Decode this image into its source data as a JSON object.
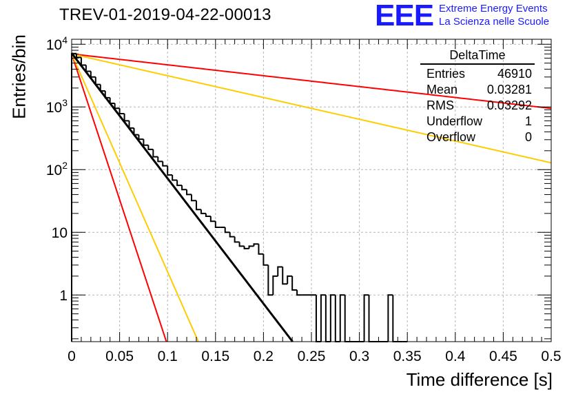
{
  "title": "TREV-01-2019-04-22-00013",
  "logo": {
    "mark": "EEE",
    "line1": "Extreme Energy Events",
    "line2": "La Scienza nelle Scuole",
    "color": "#1a1aff"
  },
  "stats_box": {
    "name": "DeltaTime",
    "rows": [
      {
        "label": "Entries",
        "value": "46910"
      },
      {
        "label": "Mean",
        "value": "0.03281"
      },
      {
        "label": "RMS",
        "value": "0.03292"
      },
      {
        "label": "Underflow",
        "value": "1"
      },
      {
        "label": "Overflow",
        "value": "0"
      }
    ]
  },
  "chart_data": {
    "type": "bar",
    "title": "TREV-01-2019-04-22-00013",
    "xlabel": "Time difference [s]",
    "ylabel": "Entries/bin",
    "xlim": [
      0,
      0.5
    ],
    "ylim": [
      0.18,
      12000
    ],
    "yscale": "log",
    "grid": true,
    "x_ticks": [
      "0",
      "0.05",
      "0.1",
      "0.15",
      "0.2",
      "0.25",
      "0.3",
      "0.35",
      "0.4",
      "0.45",
      "0.5"
    ],
    "y_ticks": [
      {
        "value": 1,
        "label": "1"
      },
      {
        "value": 10,
        "label": "10"
      },
      {
        "value": 100,
        "label": "10^2"
      },
      {
        "value": 1000,
        "label": "10^3"
      },
      {
        "value": 10000,
        "label": "10^4"
      }
    ],
    "histogram": {
      "bin_width": 0.005,
      "values": [
        7100,
        6150,
        4650,
        3700,
        3000,
        2280,
        1800,
        1400,
        1140,
        950,
        780,
        600,
        460,
        360,
        305,
        245,
        210,
        160,
        135,
        115,
        82,
        68,
        56,
        48,
        40,
        32,
        23,
        20,
        18,
        15,
        12,
        12,
        10,
        8.5,
        7,
        6,
        5.5,
        6,
        6.5,
        4.5,
        3,
        1,
        2,
        2.8,
        1.5,
        2,
        1.2,
        1,
        1,
        1,
        1,
        0,
        1,
        0,
        1,
        0,
        1,
        0,
        0,
        0,
        0,
        1,
        0,
        0,
        0,
        0,
        1,
        0,
        0,
        0
      ]
    },
    "fits": [
      {
        "color": "#000000",
        "y0": 7200,
        "slope_per_s": 46,
        "x_end": 0.35
      },
      {
        "color": "#ff0000",
        "y0": 7000,
        "slope_per_s": 4.0,
        "x_end": 0.5
      },
      {
        "color": "#ffcc00",
        "y0": 7000,
        "slope_per_s": 8.0,
        "x_end": 0.5
      },
      {
        "color": "#ff0000",
        "y0": 7000,
        "slope_per_s": 107,
        "x_end": 0.5
      },
      {
        "color": "#ffcc00",
        "y0": 7000,
        "slope_per_s": 80,
        "x_end": 0.5
      }
    ]
  }
}
